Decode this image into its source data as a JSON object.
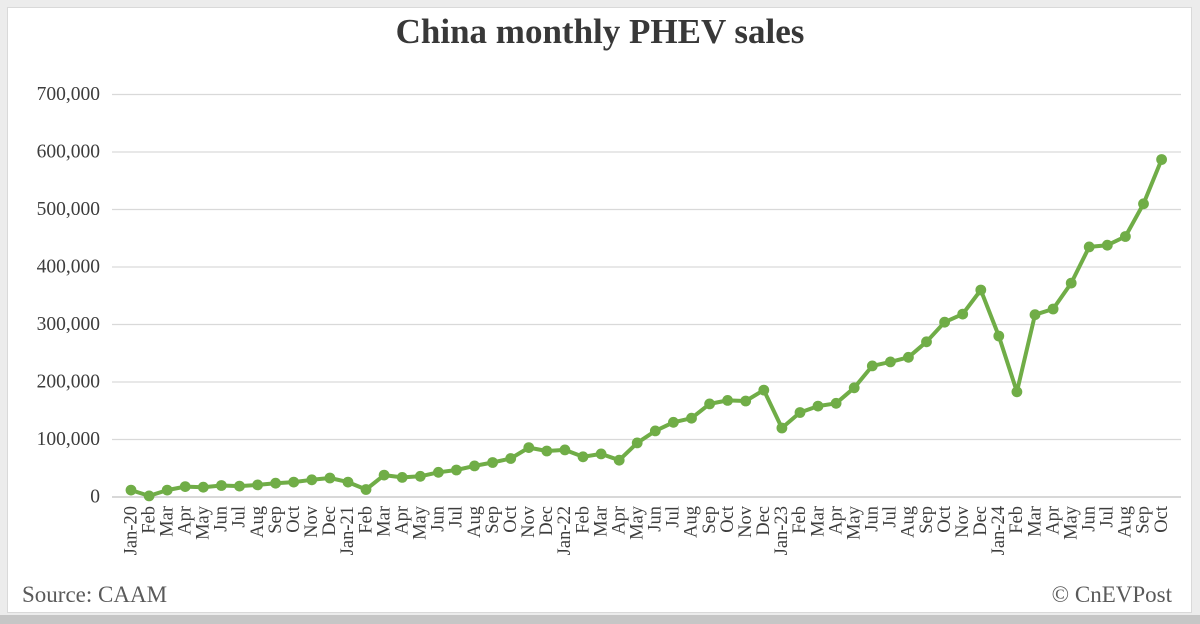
{
  "title": "China monthly PHEV sales",
  "footer": {
    "source": "Source: CAAM",
    "watermark": "© CnEVPost"
  },
  "colors": {
    "line": "#70ad47",
    "grid": "#d9d9d9",
    "zero_axis": "#c0c0c0",
    "tick_text": "#3d3d3d",
    "title_text": "#383838",
    "footer_text": "#5a5a5a",
    "card_bg": "#ffffff",
    "page_bg": "#ececec",
    "bottom_bar": "#c6c6c6"
  },
  "chart_data": {
    "type": "line",
    "title": "China monthly PHEV sales",
    "xlabel": "",
    "ylabel": "",
    "ylim": [
      0,
      700000
    ],
    "ytick_step": 100000,
    "grid": true,
    "legend": "none",
    "marker": "circle",
    "series_color": "#70ad47",
    "categories": [
      "Jan-20",
      "Feb",
      "Mar",
      "Apr",
      "May",
      "Jun",
      "Jul",
      "Aug",
      "Sep",
      "Oct",
      "Nov",
      "Dec",
      "Jan-21",
      "Feb",
      "Mar",
      "Apr",
      "May",
      "Jun",
      "Jul",
      "Aug",
      "Sep",
      "Oct",
      "Nov",
      "Dec",
      "Jan-22",
      "Feb",
      "Mar",
      "Apr",
      "May",
      "Jun",
      "Jul",
      "Aug",
      "Sep",
      "Oct",
      "Nov",
      "Dec",
      "Jan-23",
      "Feb",
      "Mar",
      "Apr",
      "May",
      "Jun",
      "Jul",
      "Aug",
      "Sep",
      "Oct",
      "Nov",
      "Dec",
      "Jan-24",
      "Feb",
      "Mar",
      "Apr",
      "May",
      "Jun",
      "Jul",
      "Aug",
      "Sep",
      "Oct"
    ],
    "values": [
      12000,
      2000,
      12000,
      18000,
      17000,
      20000,
      19000,
      21000,
      24000,
      26000,
      30000,
      33000,
      26000,
      13000,
      38000,
      34000,
      36000,
      43000,
      47000,
      54000,
      60000,
      67000,
      86000,
      80000,
      82000,
      70000,
      75000,
      64000,
      94000,
      115000,
      130000,
      137000,
      162000,
      168000,
      167000,
      186000,
      120000,
      147000,
      158000,
      163000,
      190000,
      228000,
      235000,
      243000,
      270000,
      304000,
      318000,
      360000,
      280000,
      183000,
      317000,
      327000,
      372000,
      435000,
      438000,
      453000,
      510000,
      587000
    ]
  }
}
